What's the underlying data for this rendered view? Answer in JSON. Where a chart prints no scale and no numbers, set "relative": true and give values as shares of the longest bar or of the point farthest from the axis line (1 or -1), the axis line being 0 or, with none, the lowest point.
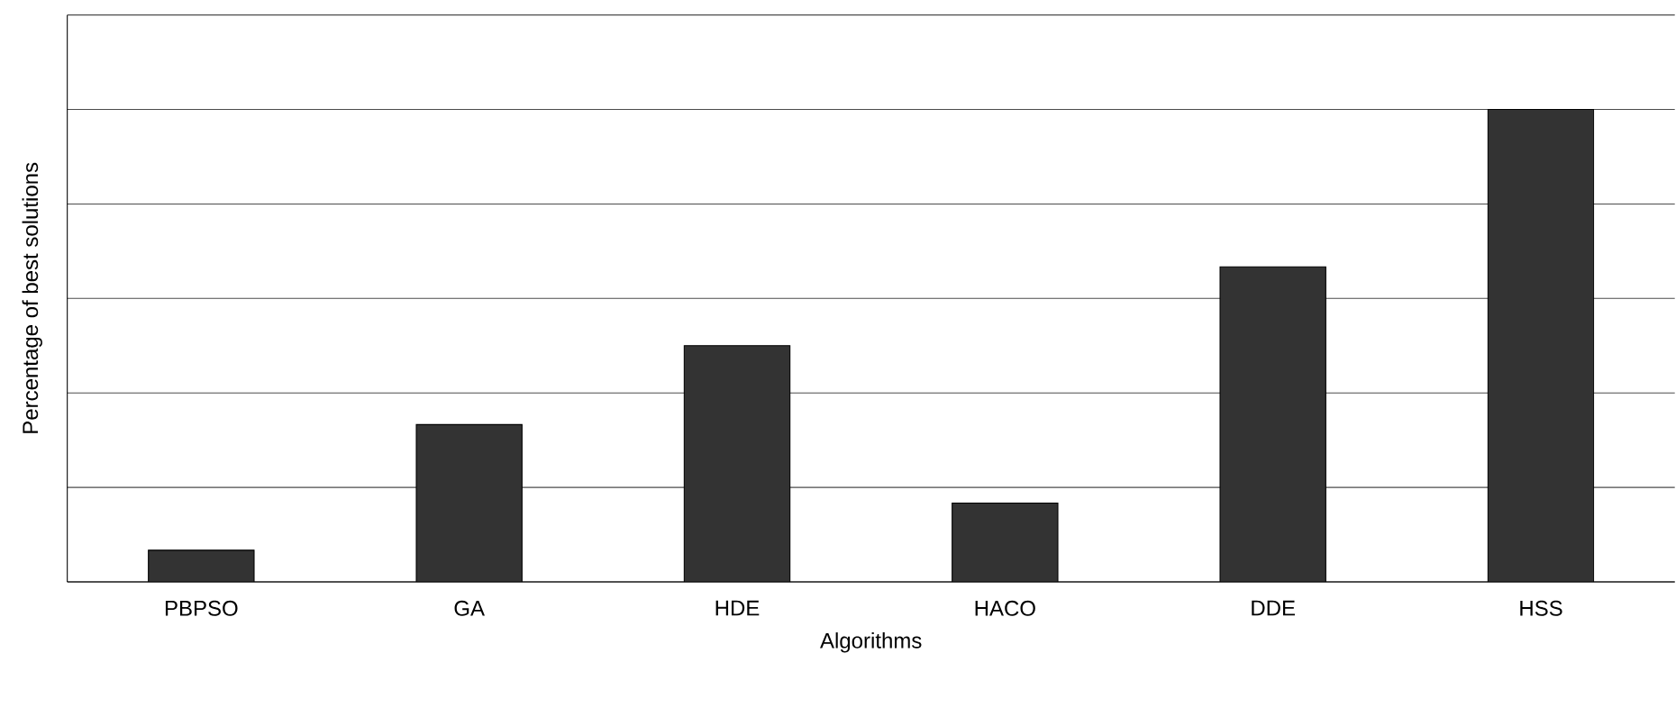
{
  "chart_data": {
    "type": "bar",
    "xlabel": "Algorithms",
    "ylabel": "Percentage of best solutions",
    "categories": [
      "PBPSO",
      "GA",
      "HDE",
      "HACO",
      "DDE",
      "HSS"
    ],
    "values": [
      0.067,
      0.333,
      0.5,
      0.167,
      0.667,
      1
    ],
    "color": "#333333",
    "relative": true,
    "grid": "y"
  }
}
